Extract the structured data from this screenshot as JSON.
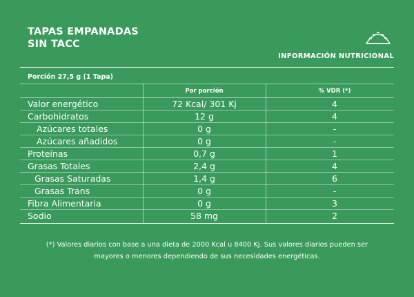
{
  "header": {
    "title_line1": "TAPAS EMPANADAS",
    "title_line2": "SIN TACC",
    "info_label": "INFORMACIÓN NUTRICIONAL",
    "logo_icon": "empanada-icon"
  },
  "table": {
    "portion": "Porción 27,5 g (1 Tapa)",
    "col_amount": "Por porción",
    "col_vdr": "% VDR (*)",
    "rows": [
      {
        "name": "Valor energético",
        "amount": "72 Kcal/ 301 Kj",
        "vdr": "4"
      },
      {
        "name": "Carbohidratos",
        "amount": "12 g",
        "vdr": "4"
      },
      {
        "name": "Azúcares totales",
        "amount": "0 g",
        "vdr": "-"
      },
      {
        "name": "Azúcares añadidos",
        "amount": "0 g",
        "vdr": "-"
      },
      {
        "name": "Proteínas",
        "amount": "0,7 g",
        "vdr": "1"
      },
      {
        "name": "Grasas Totales",
        "amount": "2,4 g",
        "vdr": "4"
      },
      {
        "name": "Grasas Saturadas",
        "amount": "1,4 g",
        "vdr": "6"
      },
      {
        "name": "Grasas Trans",
        "amount": "0 g",
        "vdr": "-"
      },
      {
        "name": "Fibra Alimentaria",
        "amount": "0 g",
        "vdr": "3"
      },
      {
        "name": "Sodio",
        "amount": "58 mg",
        "vdr": "2"
      }
    ]
  },
  "footnote": {
    "line1": "(*) Valores diarios con base a una dieta de 2000 Kcal u 8400 Kj. Sus valores diarios pueden ser",
    "line2": "mayores o menores dependiendo de sus necesidades energéticas."
  },
  "colors": {
    "background": "#3a9a5b",
    "text": "#ffffff"
  }
}
